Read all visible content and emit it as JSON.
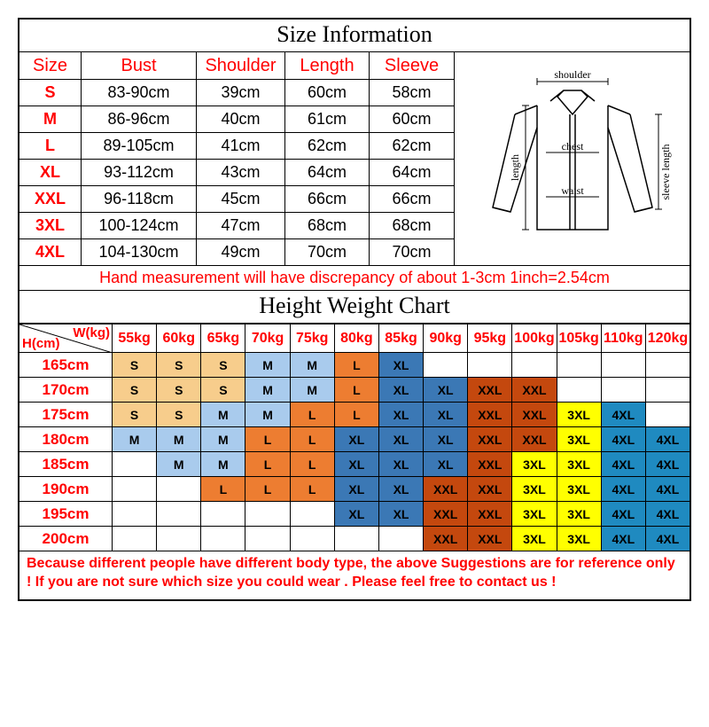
{
  "title1": "Size Information",
  "title2": "Height Weight Chart",
  "size_table": {
    "headers": [
      "Size",
      "Bust",
      "Shoulder",
      "Length",
      "Sleeve"
    ],
    "header_color": "#ff0000",
    "rows": [
      {
        "size": "S",
        "bust": "83-90cm",
        "shoulder": "39cm",
        "length": "60cm",
        "sleeve": "58cm"
      },
      {
        "size": "M",
        "bust": "86-96cm",
        "shoulder": "40cm",
        "length": "61cm",
        "sleeve": "60cm"
      },
      {
        "size": "L",
        "bust": "89-105cm",
        "shoulder": "41cm",
        "length": "62cm",
        "sleeve": "62cm"
      },
      {
        "size": "XL",
        "bust": "93-112cm",
        "shoulder": "43cm",
        "length": "64cm",
        "sleeve": "64cm"
      },
      {
        "size": "XXL",
        "bust": "96-118cm",
        "shoulder": "45cm",
        "length": "66cm",
        "sleeve": "66cm"
      },
      {
        "size": "3XL",
        "bust": "100-124cm",
        "shoulder": "47cm",
        "length": "68cm",
        "sleeve": "68cm"
      },
      {
        "size": "4XL",
        "bust": "104-130cm",
        "shoulder": "49cm",
        "length": "70cm",
        "sleeve": "70cm"
      }
    ]
  },
  "diagram_labels": {
    "shoulder": "shoulder",
    "chest": "chest",
    "waist": "waist",
    "length": "length",
    "sleeve_length": "sleeve length"
  },
  "measurement_note": "Hand measurement will have discrepancy of about 1-3cm  1inch=2.54cm",
  "hw": {
    "corner_h": "H(cm)",
    "corner_w": "W(kg)",
    "weights": [
      "55kg",
      "60kg",
      "65kg",
      "70kg",
      "75kg",
      "80kg",
      "85kg",
      "90kg",
      "95kg",
      "100kg",
      "105kg",
      "110kg",
      "120kg"
    ],
    "heights": [
      "165cm",
      "170cm",
      "175cm",
      "180cm",
      "185cm",
      "190cm",
      "195cm",
      "200cm"
    ],
    "colors": {
      "S": "#f7cd8c",
      "M": "#a9cbed",
      "L": "#ed7d31",
      "XL": "#3b78b5",
      "XXL": "#c4480e",
      "3XL": "#ffff00",
      "4XL": "#1f8ac0",
      "empty": "#ffffff"
    },
    "grid": [
      [
        "S",
        "S",
        "S",
        "M",
        "M",
        "L",
        "XL",
        "",
        "",
        "",
        "",
        "",
        ""
      ],
      [
        "S",
        "S",
        "S",
        "M",
        "M",
        "L",
        "XL",
        "XL",
        "XXL",
        "XXL",
        "",
        "",
        ""
      ],
      [
        "S",
        "S",
        "M",
        "M",
        "L",
        "L",
        "XL",
        "XL",
        "XXL",
        "XXL",
        "3XL",
        "4XL",
        ""
      ],
      [
        "M",
        "M",
        "M",
        "L",
        "L",
        "XL",
        "XL",
        "XL",
        "XXL",
        "XXL",
        "3XL",
        "4XL",
        "4XL"
      ],
      [
        "",
        "M",
        "M",
        "L",
        "L",
        "XL",
        "XL",
        "XL",
        "XXL",
        "3XL",
        "3XL",
        "4XL",
        "4XL"
      ],
      [
        "",
        "",
        "L",
        "L",
        "L",
        "XL",
        "XL",
        "XXL",
        "XXL",
        "3XL",
        "3XL",
        "4XL",
        "4XL"
      ],
      [
        "",
        "",
        "",
        "",
        "",
        "XL",
        "XL",
        "XXL",
        "XXL",
        "3XL",
        "3XL",
        "4XL",
        "4XL"
      ],
      [
        "",
        "",
        "",
        "",
        "",
        "",
        "",
        "XXL",
        "XXL",
        "3XL",
        "3XL",
        "4XL",
        "4XL"
      ]
    ]
  },
  "disclaimer": "Because different people have different body type, the above Suggestions are for reference only ! If you are not sure which size you could wear . Please feel free to contact us !"
}
